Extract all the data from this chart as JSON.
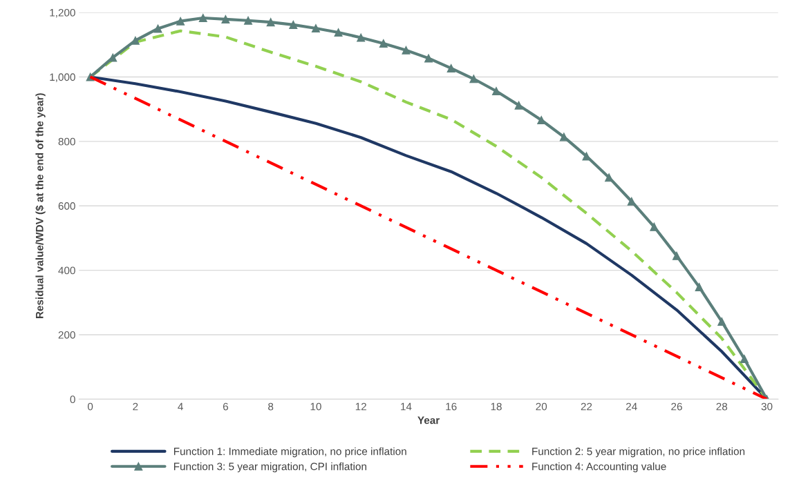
{
  "chart_data": {
    "type": "line",
    "xlabel": "Year",
    "ylabel": "Residual value/WDV ($ at the end of the year)",
    "xlim": [
      -0.5,
      30.5
    ],
    "xticks": [
      0,
      2,
      4,
      6,
      8,
      10,
      12,
      14,
      16,
      18,
      20,
      22,
      24,
      26,
      28,
      30
    ],
    "ylim": [
      0,
      1200
    ],
    "yticks": [
      {
        "value": 0,
        "label": "0"
      },
      {
        "value": 200,
        "label": "200"
      },
      {
        "value": 400,
        "label": "400"
      },
      {
        "value": 600,
        "label": "600"
      },
      {
        "value": 800,
        "label": "800"
      },
      {
        "value": 1000,
        "label": "1,000"
      },
      {
        "value": 1200,
        "label": "1,200"
      }
    ],
    "grid": "y",
    "legend": "bottom",
    "series": [
      {
        "name": "Function 1: Immediate migration, no price inflation",
        "color": "#1f3864",
        "line_style": "solid",
        "marker": "none",
        "x": [
          0,
          2,
          4,
          6,
          8,
          10,
          12,
          14,
          16,
          18,
          20,
          22,
          24,
          26,
          28,
          30
        ],
        "values": [
          1000,
          979,
          954,
          925,
          891,
          856,
          812,
          756,
          706,
          639,
          564,
          483,
          385,
          277,
          148,
          0
        ]
      },
      {
        "name": "Function 2: 5 year migration, no price inflation",
        "color": "#92d050",
        "line_style": "dashed",
        "marker": "none",
        "x": [
          0,
          2,
          4,
          6,
          8,
          10,
          12,
          14,
          16,
          18,
          20,
          22,
          24,
          26,
          28,
          30
        ],
        "values": [
          1000,
          1108,
          1143,
          1124,
          1077,
          1033,
          985,
          922,
          868,
          785,
          688,
          577,
          460,
          331,
          189,
          0
        ]
      },
      {
        "name": "Function 3: 5 year migration, CPI inflation",
        "color": "#5b7f7b",
        "line_style": "solid",
        "marker": "triangle",
        "x": [
          0,
          1,
          2,
          3,
          4,
          5,
          6,
          7,
          8,
          9,
          10,
          11,
          12,
          13,
          14,
          15,
          16,
          17,
          18,
          19,
          20,
          21,
          22,
          23,
          24,
          25,
          26,
          27,
          28,
          29,
          30
        ],
        "values": [
          1000,
          1060,
          1113,
          1150,
          1173,
          1183,
          1179,
          1175,
          1170,
          1162,
          1151,
          1138,
          1122,
          1104,
          1083,
          1058,
          1027,
          994,
          956,
          912,
          866,
          814,
          754,
          688,
          614,
          535,
          445,
          348,
          241,
          125,
          0
        ]
      },
      {
        "name": "Function 4: Accounting value",
        "color": "#ff0000",
        "line_style": "dashdotdot",
        "marker": "none",
        "x": [
          0,
          30
        ],
        "values": [
          1000,
          0
        ]
      }
    ]
  }
}
